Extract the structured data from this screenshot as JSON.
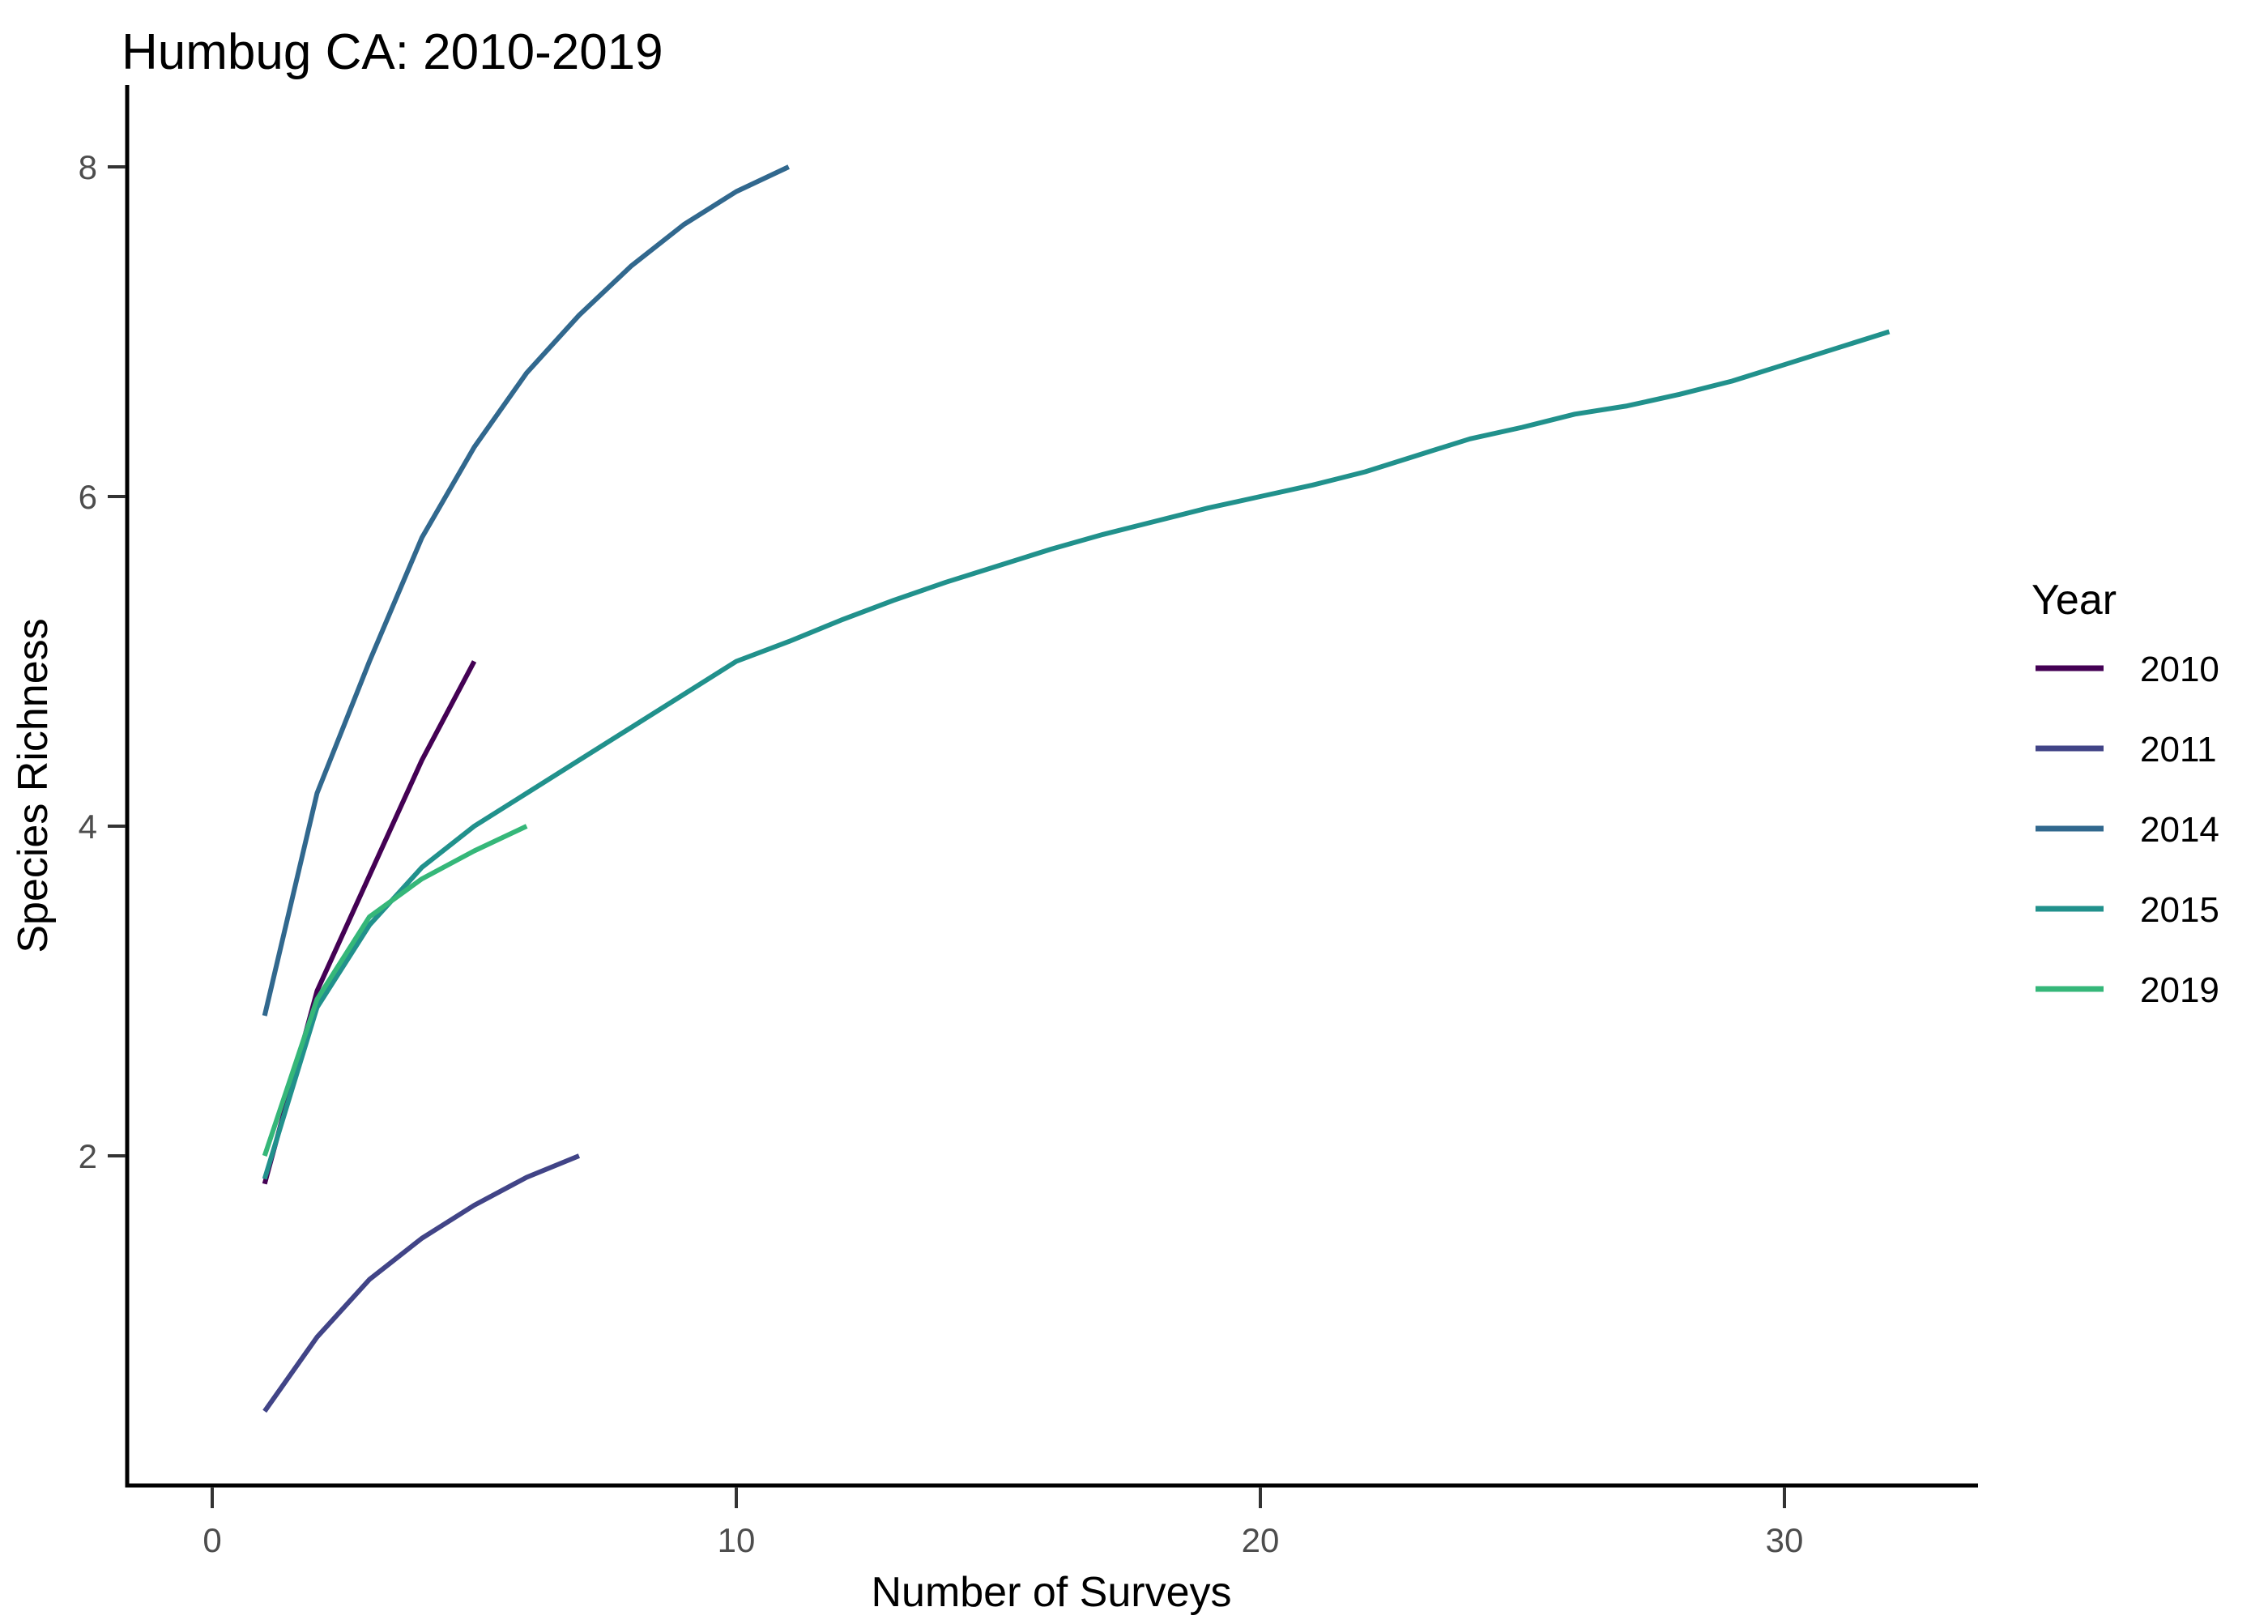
{
  "title": "Humbug CA: 2010-2019",
  "legend": {
    "title": "Year",
    "position": "right"
  },
  "chart_data": {
    "type": "line",
    "title": "Humbug CA: 2010-2019",
    "xlabel": "Number of Surveys",
    "ylabel": "Species Richness",
    "xlim": [
      -1.6,
      33.6
    ],
    "ylim": [
      0,
      8.55
    ],
    "x_ticks": [
      0,
      10,
      20,
      30
    ],
    "y_ticks": [
      2,
      4,
      6,
      8
    ],
    "grid": false,
    "legend_title": "Year",
    "legend_position": "right",
    "axis_color": "#000000",
    "tick_label_color": "#4d4d4d",
    "series": [
      {
        "name": "2010",
        "color": "#440154",
        "points": [
          [
            1,
            1.83
          ],
          [
            2,
            3.0
          ],
          [
            3,
            3.7
          ],
          [
            4,
            4.4
          ],
          [
            5,
            5.0
          ]
        ]
      },
      {
        "name": "2011",
        "color": "#414487",
        "points": [
          [
            1,
            0.45
          ],
          [
            2,
            0.9
          ],
          [
            3,
            1.25
          ],
          [
            4,
            1.5
          ],
          [
            5,
            1.7
          ],
          [
            6,
            1.87
          ],
          [
            7,
            2.0
          ]
        ]
      },
      {
        "name": "2014",
        "color": "#31688E",
        "points": [
          [
            1,
            2.85
          ],
          [
            2,
            4.2
          ],
          [
            3,
            5.0
          ],
          [
            4,
            5.75
          ],
          [
            5,
            6.3
          ],
          [
            6,
            6.75
          ],
          [
            7,
            7.1
          ],
          [
            8,
            7.4
          ],
          [
            9,
            7.65
          ],
          [
            10,
            7.85
          ],
          [
            11,
            8.0
          ]
        ]
      },
      {
        "name": "2015",
        "color": "#21918C",
        "points": [
          [
            1,
            1.86
          ],
          [
            2,
            2.9
          ],
          [
            3,
            3.4
          ],
          [
            4,
            3.75
          ],
          [
            5,
            4.0
          ],
          [
            6,
            4.2
          ],
          [
            7,
            4.4
          ],
          [
            8,
            4.6
          ],
          [
            9,
            4.8
          ],
          [
            10,
            5.0
          ],
          [
            11,
            5.12
          ],
          [
            12,
            5.25
          ],
          [
            13,
            5.37
          ],
          [
            14,
            5.48
          ],
          [
            15,
            5.58
          ],
          [
            16,
            5.68
          ],
          [
            17,
            5.77
          ],
          [
            18,
            5.85
          ],
          [
            19,
            5.93
          ],
          [
            20,
            6.0
          ],
          [
            21,
            6.07
          ],
          [
            22,
            6.15
          ],
          [
            23,
            6.25
          ],
          [
            24,
            6.35
          ],
          [
            25,
            6.42
          ],
          [
            26,
            6.5
          ],
          [
            27,
            6.55
          ],
          [
            28,
            6.62
          ],
          [
            29,
            6.7
          ],
          [
            30,
            6.8
          ],
          [
            31,
            6.9
          ],
          [
            32,
            7.0
          ]
        ]
      },
      {
        "name": "2019",
        "color": "#35B779",
        "points": [
          [
            1,
            2.0
          ],
          [
            2,
            2.95
          ],
          [
            3,
            3.45
          ],
          [
            4,
            3.68
          ],
          [
            5,
            3.85
          ],
          [
            6,
            4.0
          ]
        ]
      }
    ]
  }
}
